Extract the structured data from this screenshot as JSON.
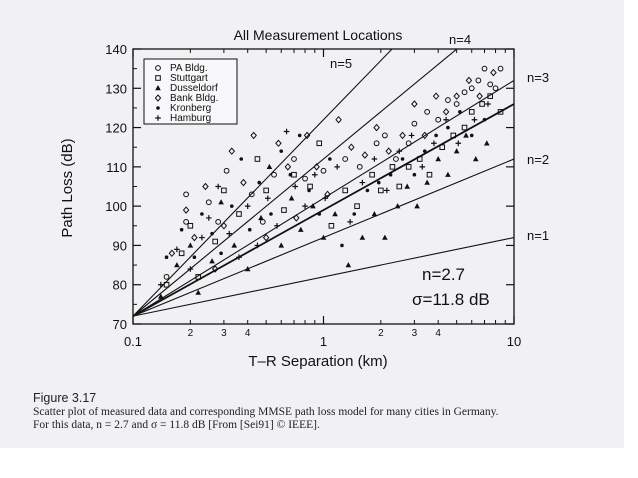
{
  "figure": {
    "number": "Figure 3.17",
    "caption_line1": "Scatter plot of measured data and corresponding MMSE path loss model for many cities in Germany.",
    "caption_line2": "For this data, n = 2.7 and σ = 11.8 dB [From [Sei91] © IEEE]."
  },
  "chart_data": {
    "type": "scatter",
    "title": "All Measurement Locations",
    "xlabel": "T–R Separation (km)",
    "ylabel": "Path Loss (dB)",
    "x_scale": "log",
    "xlim": [
      0.1,
      10
    ],
    "ylim": [
      70,
      140
    ],
    "grid": false,
    "x_major_ticks": [
      "0.1",
      "1",
      "10"
    ],
    "x_minor_ticks": [
      {
        "x": 0.2,
        "label": "2"
      },
      {
        "x": 0.3,
        "label": "3"
      },
      {
        "x": 0.4,
        "label": "4"
      },
      {
        "x": 2,
        "label": "2"
      },
      {
        "x": 3,
        "label": "3"
      },
      {
        "x": 4,
        "label": "4"
      }
    ],
    "y_ticks": [
      {
        "y": 70,
        "label": "70"
      },
      {
        "y": 80,
        "label": "80"
      },
      {
        "y": 90,
        "label": "90"
      },
      {
        "y": 100,
        "label": "100"
      },
      {
        "y": 110,
        "label": "110"
      },
      {
        "y": 120,
        "label": "120"
      },
      {
        "y": 130,
        "label": "130"
      },
      {
        "y": 140,
        "label": "140"
      }
    ],
    "legend_position": "top-left",
    "legend": [
      {
        "name": "PA Bldg.",
        "marker": "circle-open"
      },
      {
        "name": "Stuttgart",
        "marker": "square-open"
      },
      {
        "name": "Dusseldorf",
        "marker": "triangle-filled"
      },
      {
        "name": "Bank Bldg.",
        "marker": "diamond-open"
      },
      {
        "name": "Kronberg",
        "marker": "circle-small"
      },
      {
        "name": "Hamburg",
        "marker": "plus"
      }
    ],
    "reference_lines": [
      {
        "label": "n=1",
        "n": 1,
        "start": [
          0.1,
          72
        ],
        "end": [
          10,
          92
        ]
      },
      {
        "label": "n=2",
        "n": 2,
        "start": [
          0.1,
          72
        ],
        "end": [
          10,
          112
        ]
      },
      {
        "label": "n=3",
        "n": 3,
        "start": [
          0.1,
          72
        ],
        "end": [
          10,
          132
        ]
      },
      {
        "label": "n=4",
        "n": 4,
        "start": [
          0.1,
          72
        ],
        "end": [
          7.5,
          147
        ]
      },
      {
        "label": "n=5",
        "n": 5,
        "start": [
          0.1,
          72
        ],
        "end": [
          3.8,
          151
        ]
      }
    ],
    "fit": {
      "type": "MMSE",
      "n": 2.7,
      "start": [
        0.1,
        72
      ],
      "end": [
        10,
        126
      ]
    },
    "annotations": [
      "n=2.7",
      "σ=11.8 dB"
    ],
    "n_label": "n=2.7",
    "sigma_label": "σ=11.8 dB",
    "series": [
      {
        "name": "PA Bldg.",
        "marker": "circle-open",
        "points": [
          [
            0.15,
            82
          ],
          [
            0.19,
            96
          ],
          [
            0.19,
            103
          ],
          [
            0.25,
            101
          ],
          [
            0.28,
            96
          ],
          [
            0.31,
            109
          ],
          [
            0.42,
            103
          ],
          [
            0.48,
            96
          ],
          [
            0.55,
            108
          ],
          [
            0.7,
            112
          ],
          [
            0.8,
            107
          ],
          [
            1.0,
            109
          ],
          [
            1.3,
            112
          ],
          [
            1.55,
            110
          ],
          [
            1.9,
            116
          ],
          [
            2.1,
            118
          ],
          [
            2.4,
            112
          ],
          [
            2.8,
            116
          ],
          [
            3.0,
            121
          ],
          [
            3.5,
            124
          ],
          [
            4.0,
            122
          ],
          [
            4.5,
            127
          ],
          [
            5.0,
            126
          ],
          [
            5.5,
            129
          ],
          [
            6.0,
            130
          ],
          [
            6.5,
            132
          ],
          [
            7.0,
            135
          ],
          [
            7.5,
            131
          ],
          [
            8.0,
            130
          ],
          [
            8.5,
            135
          ]
        ]
      },
      {
        "name": "Stuttgart",
        "marker": "square-open",
        "points": [
          [
            0.15,
            80
          ],
          [
            0.18,
            88
          ],
          [
            0.2,
            95
          ],
          [
            0.22,
            82
          ],
          [
            0.27,
            91
          ],
          [
            0.3,
            104
          ],
          [
            0.36,
            98
          ],
          [
            0.45,
            112
          ],
          [
            0.5,
            104
          ],
          [
            0.62,
            99
          ],
          [
            0.7,
            108
          ],
          [
            0.85,
            105
          ],
          [
            0.95,
            116
          ],
          [
            1.1,
            95
          ],
          [
            1.3,
            104
          ],
          [
            1.5,
            100
          ],
          [
            1.8,
            108
          ],
          [
            2.0,
            104
          ],
          [
            2.3,
            110
          ],
          [
            2.5,
            105
          ],
          [
            2.8,
            110
          ],
          [
            3.2,
            112
          ],
          [
            3.6,
            108
          ],
          [
            4.2,
            115
          ],
          [
            4.8,
            118
          ],
          [
            5.5,
            120
          ],
          [
            6.0,
            124
          ],
          [
            6.8,
            126
          ],
          [
            7.5,
            128
          ],
          [
            8.5,
            124
          ]
        ]
      },
      {
        "name": "Dusseldorf",
        "marker": "triangle-filled",
        "points": [
          [
            0.14,
            77
          ],
          [
            0.17,
            85
          ],
          [
            0.2,
            90
          ],
          [
            0.22,
            78
          ],
          [
            0.26,
            86
          ],
          [
            0.29,
            101
          ],
          [
            0.34,
            90
          ],
          [
            0.4,
            84
          ],
          [
            0.47,
            97
          ],
          [
            0.52,
            110
          ],
          [
            0.6,
            90
          ],
          [
            0.68,
            102
          ],
          [
            0.76,
            94
          ],
          [
            0.88,
            100
          ],
          [
            1.0,
            92
          ],
          [
            1.15,
            98
          ],
          [
            1.35,
            85
          ],
          [
            1.6,
            92
          ],
          [
            1.85,
            98
          ],
          [
            2.1,
            92
          ],
          [
            2.45,
            100
          ],
          [
            2.75,
            105
          ],
          [
            3.1,
            100
          ],
          [
            3.5,
            106
          ],
          [
            4.0,
            112
          ],
          [
            4.5,
            108
          ],
          [
            5.0,
            114
          ],
          [
            5.6,
            118
          ],
          [
            6.3,
            112
          ],
          [
            7.2,
            116
          ]
        ]
      },
      {
        "name": "Bank Bldg.",
        "marker": "diamond-open",
        "points": [
          [
            0.16,
            88
          ],
          [
            0.19,
            99
          ],
          [
            0.21,
            92
          ],
          [
            0.24,
            105
          ],
          [
            0.27,
            84
          ],
          [
            0.3,
            95
          ],
          [
            0.33,
            114
          ],
          [
            0.38,
            106
          ],
          [
            0.43,
            118
          ],
          [
            0.5,
            92
          ],
          [
            0.58,
            116
          ],
          [
            0.65,
            110
          ],
          [
            0.72,
            97
          ],
          [
            0.82,
            118
          ],
          [
            0.92,
            110
          ],
          [
            1.05,
            103
          ],
          [
            1.2,
            122
          ],
          [
            1.4,
            115
          ],
          [
            1.65,
            113
          ],
          [
            1.9,
            120
          ],
          [
            2.2,
            114
          ],
          [
            2.6,
            118
          ],
          [
            3.0,
            126
          ],
          [
            3.4,
            118
          ],
          [
            3.9,
            128
          ],
          [
            4.4,
            124
          ],
          [
            5.0,
            128
          ],
          [
            5.8,
            132
          ],
          [
            6.6,
            128
          ],
          [
            7.8,
            134
          ]
        ]
      },
      {
        "name": "Kronberg",
        "marker": "circle-small",
        "points": [
          [
            0.15,
            87
          ],
          [
            0.18,
            94
          ],
          [
            0.21,
            87
          ],
          [
            0.23,
            98
          ],
          [
            0.26,
            93
          ],
          [
            0.29,
            88
          ],
          [
            0.33,
            100
          ],
          [
            0.37,
            112
          ],
          [
            0.41,
            94
          ],
          [
            0.46,
            106
          ],
          [
            0.53,
            98
          ],
          [
            0.6,
            114
          ],
          [
            0.67,
            108
          ],
          [
            0.75,
            118
          ],
          [
            0.84,
            104
          ],
          [
            0.95,
            98
          ],
          [
            1.08,
            112
          ],
          [
            1.25,
            90
          ],
          [
            1.45,
            98
          ],
          [
            1.7,
            104
          ],
          [
            1.95,
            106
          ],
          [
            2.25,
            108
          ],
          [
            2.6,
            112
          ],
          [
            3.0,
            108
          ],
          [
            3.4,
            114
          ],
          [
            3.9,
            118
          ],
          [
            4.5,
            120
          ],
          [
            5.2,
            124
          ],
          [
            6.0,
            118
          ],
          [
            7.0,
            122
          ]
        ]
      },
      {
        "name": "Hamburg",
        "marker": "plus",
        "points": [
          [
            0.14,
            80
          ],
          [
            0.17,
            89
          ],
          [
            0.2,
            84
          ],
          [
            0.23,
            92
          ],
          [
            0.25,
            97
          ],
          [
            0.28,
            105
          ],
          [
            0.32,
            93
          ],
          [
            0.36,
            87
          ],
          [
            0.4,
            100
          ],
          [
            0.45,
            90
          ],
          [
            0.51,
            102
          ],
          [
            0.57,
            95
          ],
          [
            0.64,
            119
          ],
          [
            0.71,
            105
          ],
          [
            0.8,
            100
          ],
          [
            0.9,
            108
          ],
          [
            1.02,
            102
          ],
          [
            1.18,
            110
          ],
          [
            1.38,
            96
          ],
          [
            1.6,
            106
          ],
          [
            1.85,
            112
          ],
          [
            2.15,
            104
          ],
          [
            2.5,
            114
          ],
          [
            2.9,
            118
          ],
          [
            3.3,
            110
          ],
          [
            3.8,
            116
          ],
          [
            4.4,
            122
          ],
          [
            5.1,
            116
          ],
          [
            6.2,
            122
          ],
          [
            7.3,
            126
          ]
        ]
      }
    ]
  }
}
